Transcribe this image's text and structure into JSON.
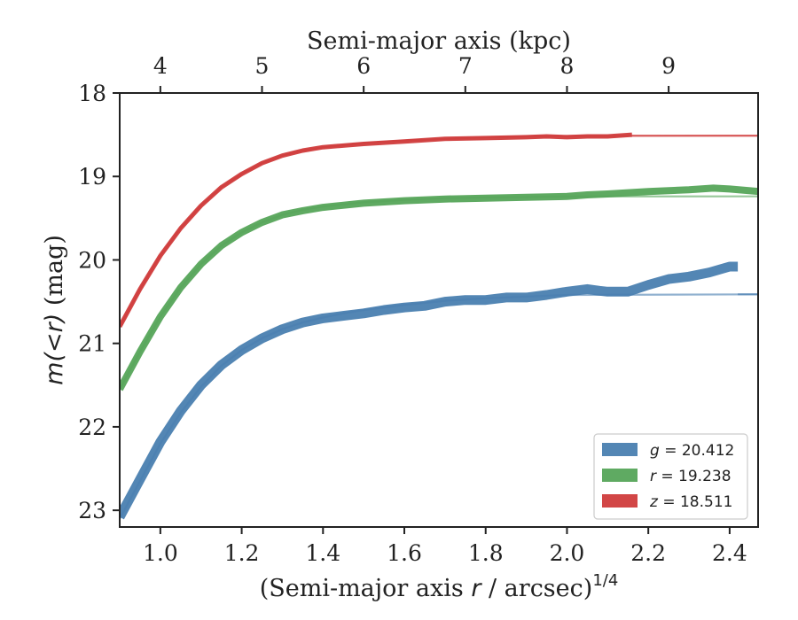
{
  "chart_data": {
    "type": "line",
    "xlabel_main": "(Semi-major axis",
    "xlabel_var": "r",
    "xlabel_rest": " / arcsec)",
    "xlabel_exp": "1/4",
    "x_top_label": "Semi-major axis (kpc)",
    "ylabel_var": "m(<r)",
    "ylabel_unit": " (mag)",
    "xlim": [
      0.9,
      2.47
    ],
    "ylim": [
      23.2,
      18.0
    ],
    "y_inverted": true,
    "x_ticks": [
      1.0,
      1.2,
      1.4,
      1.6,
      1.8,
      2.0,
      2.2,
      2.4
    ],
    "x_tick_labels": [
      "1.0",
      "1.2",
      "1.4",
      "1.6",
      "1.8",
      "2.0",
      "2.2",
      "2.4"
    ],
    "y_ticks": [
      18,
      19,
      20,
      21,
      22,
      23
    ],
    "y_tick_labels": [
      "18",
      "19",
      "20",
      "21",
      "22",
      "23"
    ],
    "top_ticks_kpc": [
      4,
      5,
      6,
      7,
      8,
      9
    ],
    "top_tick_labels": [
      "4",
      "5",
      "6",
      "7",
      "8",
      "9"
    ],
    "top_tick_positions": [
      1.0,
      1.25,
      1.5,
      1.75,
      2.0,
      2.25
    ],
    "legend_position": "lower right",
    "series": [
      {
        "band": "g",
        "value": "20.412",
        "color": "#4a7fb0",
        "asymptote": 20.412,
        "model": [
          [
            0.9,
            23.1
          ],
          [
            0.95,
            22.65
          ],
          [
            1.0,
            22.2
          ],
          [
            1.05,
            21.83
          ],
          [
            1.1,
            21.52
          ],
          [
            1.15,
            21.27
          ],
          [
            1.2,
            21.08
          ],
          [
            1.25,
            20.94
          ],
          [
            1.3,
            20.83
          ],
          [
            1.35,
            20.75
          ],
          [
            1.4,
            20.69
          ],
          [
            1.45,
            20.64
          ],
          [
            1.5,
            20.6
          ],
          [
            1.6,
            20.54
          ],
          [
            1.7,
            20.49
          ],
          [
            1.8,
            20.46
          ],
          [
            1.9,
            20.44
          ],
          [
            2.0,
            20.42
          ],
          [
            2.47,
            20.412
          ]
        ],
        "profile": [
          [
            0.9,
            23.08
          ],
          [
            0.95,
            22.63
          ],
          [
            1.0,
            22.18
          ],
          [
            1.05,
            21.81
          ],
          [
            1.1,
            21.5
          ],
          [
            1.15,
            21.26
          ],
          [
            1.2,
            21.08
          ],
          [
            1.25,
            20.94
          ],
          [
            1.3,
            20.83
          ],
          [
            1.35,
            20.75
          ],
          [
            1.4,
            20.7
          ],
          [
            1.45,
            20.67
          ],
          [
            1.5,
            20.64
          ],
          [
            1.55,
            20.6
          ],
          [
            1.6,
            20.57
          ],
          [
            1.65,
            20.55
          ],
          [
            1.7,
            20.5
          ],
          [
            1.75,
            20.48
          ],
          [
            1.8,
            20.48
          ],
          [
            1.85,
            20.45
          ],
          [
            1.9,
            20.45
          ],
          [
            1.95,
            20.42
          ],
          [
            2.0,
            20.38
          ],
          [
            2.05,
            20.35
          ],
          [
            2.08,
            20.37
          ],
          [
            2.1,
            20.38
          ],
          [
            2.15,
            20.38
          ],
          [
            2.2,
            20.3
          ],
          [
            2.25,
            20.23
          ],
          [
            2.3,
            20.2
          ],
          [
            2.35,
            20.15
          ],
          [
            2.4,
            20.08
          ],
          [
            2.42,
            20.08
          ]
        ],
        "profile_width": 11
      },
      {
        "band": "r",
        "value": "19.238",
        "color": "#56a55a",
        "asymptote": 19.238,
        "model": [
          [
            0.9,
            21.55
          ],
          [
            0.95,
            21.1
          ],
          [
            1.0,
            20.68
          ],
          [
            1.05,
            20.33
          ],
          [
            1.1,
            20.05
          ],
          [
            1.15,
            19.83
          ],
          [
            1.2,
            19.67
          ],
          [
            1.25,
            19.55
          ],
          [
            1.3,
            19.46
          ],
          [
            1.35,
            19.4
          ],
          [
            1.4,
            19.36
          ],
          [
            1.5,
            19.31
          ],
          [
            1.6,
            19.28
          ],
          [
            1.7,
            19.26
          ],
          [
            1.8,
            19.25
          ],
          [
            1.9,
            19.245
          ],
          [
            2.0,
            19.24
          ],
          [
            2.47,
            19.238
          ]
        ],
        "profile": [
          [
            0.9,
            21.55
          ],
          [
            0.95,
            21.1
          ],
          [
            1.0,
            20.68
          ],
          [
            1.05,
            20.33
          ],
          [
            1.1,
            20.05
          ],
          [
            1.15,
            19.83
          ],
          [
            1.2,
            19.67
          ],
          [
            1.25,
            19.55
          ],
          [
            1.3,
            19.46
          ],
          [
            1.35,
            19.41
          ],
          [
            1.4,
            19.37
          ],
          [
            1.5,
            19.32
          ],
          [
            1.6,
            19.29
          ],
          [
            1.7,
            19.27
          ],
          [
            1.8,
            19.26
          ],
          [
            1.9,
            19.25
          ],
          [
            2.0,
            19.24
          ],
          [
            2.05,
            19.22
          ],
          [
            2.1,
            19.21
          ],
          [
            2.2,
            19.18
          ],
          [
            2.3,
            19.16
          ],
          [
            2.36,
            19.14
          ],
          [
            2.4,
            19.15
          ],
          [
            2.47,
            19.18
          ]
        ],
        "profile_width": 8
      },
      {
        "band": "z",
        "value": "18.511",
        "color": "#d03c3c",
        "asymptote": 18.511,
        "model": [
          [
            0.9,
            20.8
          ],
          [
            0.95,
            20.35
          ],
          [
            1.0,
            19.95
          ],
          [
            1.05,
            19.62
          ],
          [
            1.1,
            19.35
          ],
          [
            1.15,
            19.13
          ],
          [
            1.2,
            18.97
          ],
          [
            1.25,
            18.84
          ],
          [
            1.3,
            18.75
          ],
          [
            1.35,
            18.69
          ],
          [
            1.4,
            18.65
          ],
          [
            1.5,
            18.6
          ],
          [
            1.6,
            18.57
          ],
          [
            1.7,
            18.55
          ],
          [
            1.8,
            18.53
          ],
          [
            1.9,
            18.52
          ],
          [
            2.0,
            18.515
          ],
          [
            2.47,
            18.511
          ]
        ],
        "profile": [
          [
            0.9,
            20.8
          ],
          [
            0.95,
            20.35
          ],
          [
            1.0,
            19.95
          ],
          [
            1.05,
            19.62
          ],
          [
            1.1,
            19.35
          ],
          [
            1.15,
            19.13
          ],
          [
            1.2,
            18.97
          ],
          [
            1.25,
            18.84
          ],
          [
            1.3,
            18.75
          ],
          [
            1.35,
            18.69
          ],
          [
            1.4,
            18.65
          ],
          [
            1.5,
            18.61
          ],
          [
            1.6,
            18.58
          ],
          [
            1.7,
            18.55
          ],
          [
            1.8,
            18.54
          ],
          [
            1.9,
            18.53
          ],
          [
            1.95,
            18.52
          ],
          [
            2.0,
            18.53
          ],
          [
            2.05,
            18.52
          ],
          [
            2.1,
            18.52
          ],
          [
            2.16,
            18.5
          ]
        ],
        "profile_width": 5
      }
    ]
  }
}
